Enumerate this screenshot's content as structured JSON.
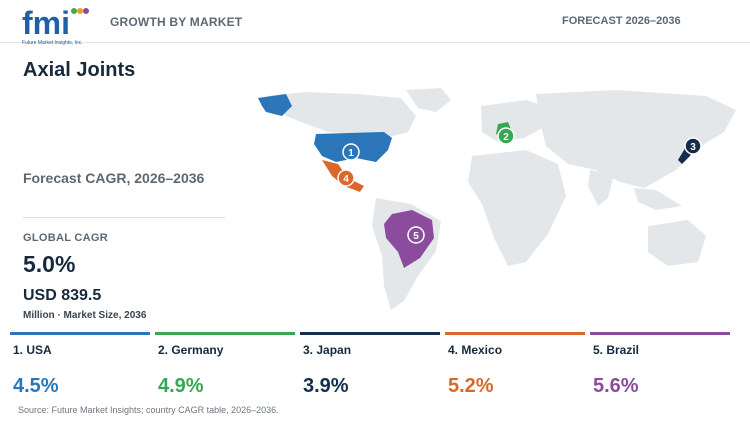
{
  "header": {
    "logo_text": "fmi",
    "logo_subtext": "Future Market Insights, Inc.",
    "title": "GROWTH BY MARKET",
    "forecast": "FORECAST 2026–2036"
  },
  "main": {
    "title": "Axial Joints",
    "cagr_label": "Forecast CAGR, 2026–2036",
    "global_label": "GLOBAL CAGR",
    "global_value": "5.0%",
    "market_size": "USD 839.5",
    "market_caption": "Million · Market Size, 2036"
  },
  "colors": {
    "usa": "#2a76b8",
    "germany": "#36a853",
    "japan": "#142d4c",
    "mexico": "#d8692b",
    "brazil": "#8b4c9e",
    "land": "#e4e7ea"
  },
  "markers": [
    {
      "id": "usa",
      "number": "1"
    },
    {
      "id": "germany",
      "number": "2"
    },
    {
      "id": "japan",
      "number": "3"
    },
    {
      "id": "mexico",
      "number": "4"
    },
    {
      "id": "brazil",
      "number": "5"
    }
  ],
  "countries": [
    {
      "id": "usa",
      "name": "1. USA",
      "cagr": "4.5%",
      "color": "#2a76b8"
    },
    {
      "id": "germany",
      "name": "2. Germany",
      "cagr": "4.9%",
      "color": "#36a853"
    },
    {
      "id": "japan",
      "name": "3. Japan",
      "cagr": "3.9%",
      "color": "#142d4c"
    },
    {
      "id": "mexico",
      "name": "4. Mexico",
      "cagr": "5.2%",
      "color": "#d8692b"
    },
    {
      "id": "brazil",
      "name": "5. Brazil",
      "cagr": "5.6%",
      "color": "#8b4c9e"
    }
  ],
  "source": "Source: Future Market Insights; country CAGR table, 2026–2036."
}
